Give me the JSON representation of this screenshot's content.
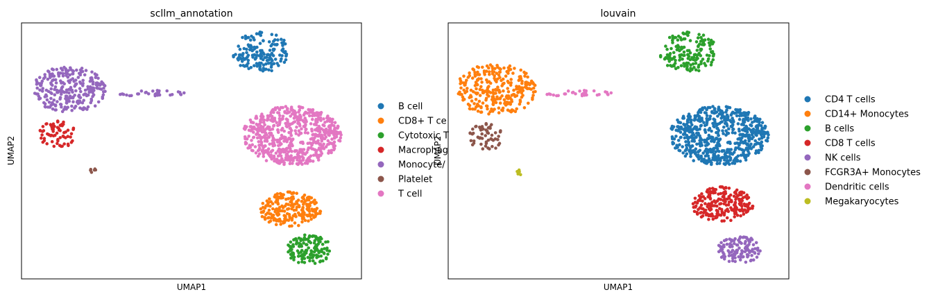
{
  "chart_data": [
    {
      "type": "scatter",
      "title": "scllm_annotation",
      "xlabel": "UMAP1",
      "ylabel": "UMAP2",
      "ticks": "none",
      "grid": false,
      "legend_position": "right",
      "xlim": [
        0,
        100
      ],
      "ylim": [
        0,
        100
      ],
      "legend": [
        {
          "label": "B cell",
          "color": "#1f77b4"
        },
        {
          "label": "CD8+ T ce",
          "color": "#ff7f0e"
        },
        {
          "label": "Cytotoxic T",
          "color": "#2ca02c"
        },
        {
          "label": "Macrophag",
          "color": "#d62728"
        },
        {
          "label": "Monocyte/",
          "color": "#9467bd"
        },
        {
          "label": "Platelet",
          "color": "#8c564b"
        },
        {
          "label": "T cell",
          "color": "#e377c2"
        }
      ],
      "clusters": [
        {
          "color": "#e377c2",
          "cx": 79.5,
          "cy": 56,
          "rx": 14.5,
          "ry": 11.5,
          "n": 650
        },
        {
          "color": "#ff7f0e",
          "cx": 79,
          "cy": 27,
          "rx": 9,
          "ry": 7,
          "n": 220
        },
        {
          "color": "#2ca02c",
          "cx": 84.5,
          "cy": 11.5,
          "rx": 6.5,
          "ry": 6,
          "n": 140
        },
        {
          "color": "#1f77b4",
          "cx": 70.5,
          "cy": 88.5,
          "rx": 8.5,
          "ry": 8,
          "n": 160
        },
        {
          "color": "#9467bd",
          "cx": 14,
          "cy": 74,
          "rx": 11,
          "ry": 9,
          "n": 260
        },
        {
          "color": "#9467bd",
          "cx": 38,
          "cy": 72.5,
          "rx": 11,
          "ry": 1.2,
          "n": 30
        },
        {
          "color": "#d62728",
          "cx": 10.5,
          "cy": 56.5,
          "rx": 5.5,
          "ry": 5.5,
          "n": 70
        },
        {
          "color": "#8c564b",
          "cx": 21,
          "cy": 42,
          "rx": 0.9,
          "ry": 1.5,
          "n": 6
        }
      ]
    },
    {
      "type": "scatter",
      "title": "louvain",
      "xlabel": "UMAP1",
      "ylabel": "UMAP2",
      "ticks": "none",
      "grid": false,
      "legend_position": "right",
      "xlim": [
        0,
        100
      ],
      "ylim": [
        0,
        100
      ],
      "legend": [
        {
          "label": "CD4 T cells",
          "color": "#1f77b4"
        },
        {
          "label": "CD14+ Monocytes",
          "color": "#ff7f0e"
        },
        {
          "label": "B cells",
          "color": "#2ca02c"
        },
        {
          "label": "CD8 T cells",
          "color": "#d62728"
        },
        {
          "label": "NK cells",
          "color": "#9467bd"
        },
        {
          "label": "FCGR3A+ Monocytes",
          "color": "#8c564b"
        },
        {
          "label": "Dendritic cells",
          "color": "#e377c2"
        },
        {
          "label": "Megakaryocytes",
          "color": "#bcbd22"
        }
      ],
      "clusters": [
        {
          "color": "#1f77b4",
          "cx": 79.5,
          "cy": 56,
          "rx": 14.5,
          "ry": 11.5,
          "n": 650
        },
        {
          "color": "#d62728",
          "cx": 80.5,
          "cy": 29,
          "rx": 9,
          "ry": 7,
          "n": 220
        },
        {
          "color": "#9467bd",
          "cx": 85.5,
          "cy": 11.5,
          "rx": 6.5,
          "ry": 5.5,
          "n": 120
        },
        {
          "color": "#2ca02c",
          "cx": 70.5,
          "cy": 88.5,
          "rx": 8.5,
          "ry": 8,
          "n": 160
        },
        {
          "color": "#ff7f0e",
          "cx": 14,
          "cy": 74,
          "rx": 12,
          "ry": 10,
          "n": 280
        },
        {
          "color": "#e377c2",
          "cx": 38,
          "cy": 72.5,
          "rx": 11,
          "ry": 1.2,
          "n": 30
        },
        {
          "color": "#8c564b",
          "cx": 11,
          "cy": 55.5,
          "rx": 5,
          "ry": 5.5,
          "n": 60
        },
        {
          "color": "#bcbd22",
          "cx": 21,
          "cy": 42,
          "rx": 0.9,
          "ry": 1.5,
          "n": 6
        }
      ]
    }
  ]
}
